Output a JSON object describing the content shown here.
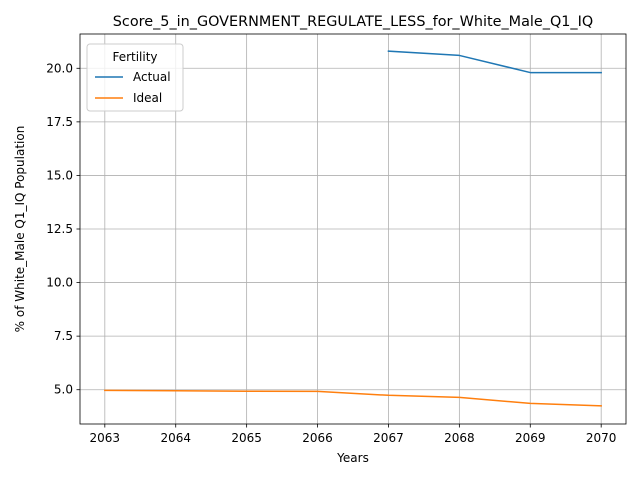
{
  "chart_data": {
    "type": "line",
    "title": "Score_5_in_GOVERNMENT_REGULATE_LESS_for_White_Male_Q1_IQ",
    "xlabel": "Years",
    "ylabel": "% of White_Male Q1_IQ Population",
    "x": [
      2063,
      2064,
      2065,
      2066,
      2067,
      2068,
      2069,
      2070
    ],
    "xlim": [
      2062.65,
      2070.35
    ],
    "ylim": [
      3.4,
      21.6
    ],
    "xticks": [
      "2063",
      "2064",
      "2065",
      "2066",
      "2067",
      "2068",
      "2069",
      "2070"
    ],
    "yticks": [
      "5.0",
      "7.5",
      "10.0",
      "12.5",
      "15.0",
      "17.5",
      "20.0"
    ],
    "grid": true,
    "legend": {
      "title": "Fertility",
      "placement": "top-left"
    },
    "series": [
      {
        "name": "Actual",
        "color": "#1f77b4",
        "values": [
          null,
          null,
          null,
          null,
          20.8,
          20.6,
          19.8,
          19.8
        ]
      },
      {
        "name": "Ideal",
        "color": "#ff7f0e",
        "values": [
          4.97,
          4.95,
          4.93,
          4.92,
          4.74,
          4.64,
          4.36,
          4.25
        ]
      }
    ]
  }
}
